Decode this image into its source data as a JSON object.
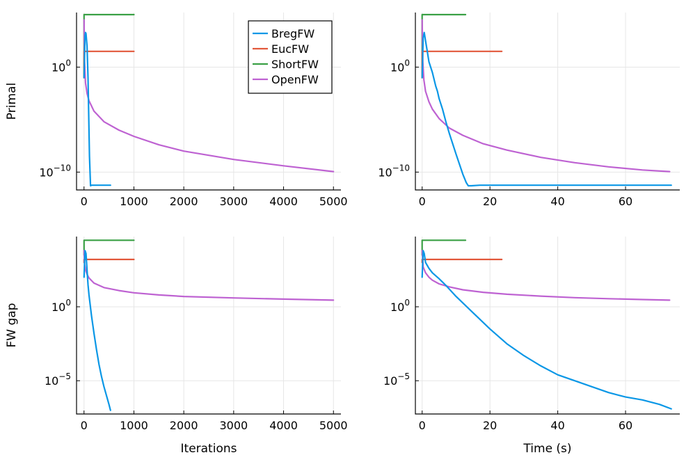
{
  "chart_data": {
    "type": "line",
    "legend": {
      "placement": "top-right of top-left panel",
      "entries": [
        "BregFW",
        "EucFW",
        "ShortFW",
        "OpenFW"
      ]
    },
    "colors": {
      "BregFW": "#0a97e6",
      "EucFW": "#e2583b",
      "ShortFW": "#3aa045",
      "OpenFW": "#be62d2"
    },
    "panels": [
      {
        "id": "primal-iterations",
        "ylabel": "Primal",
        "xlabel": "",
        "xscale": "linear",
        "yscale": "log10",
        "xlim": [
          -150,
          5150
        ],
        "ylim_log10": [
          -11.7,
          5.2
        ],
        "xticks": [
          0,
          1000,
          2000,
          3000,
          4000,
          5000
        ],
        "xtick_labels": [
          "0",
          "1000",
          "2000",
          "3000",
          "4000",
          "5000"
        ],
        "yticks_log10": [
          0,
          -10
        ],
        "ytick_labels": [
          "10",
          "10"
        ],
        "ytick_exponents": [
          "0",
          "−10"
        ],
        "series": [
          {
            "name": "ShortFW",
            "x": [
              0,
              0,
              1000
            ],
            "y_log10": [
              -1,
              5,
              5
            ]
          },
          {
            "name": "EucFW",
            "x": [
              0,
              0,
              1000
            ],
            "y_log10": [
              -1,
              1.5,
              1.5
            ]
          },
          {
            "name": "OpenFW",
            "x": [
              0,
              10,
              30,
              60,
              100,
              200,
              400,
              700,
              1000,
              1500,
              2000,
              3000,
              4000,
              5000
            ],
            "y_log10": [
              4.5,
              0.5,
              -1.5,
              -2.5,
              -3.2,
              -4.2,
              -5.2,
              -6.0,
              -6.6,
              -7.4,
              -8.0,
              -8.8,
              -9.4,
              -9.95
            ]
          },
          {
            "name": "BregFW",
            "x": [
              0,
              20,
              30,
              40,
              60,
              80,
              110,
              130,
              150,
              300,
              530
            ],
            "y_log10": [
              -1,
              3.0,
              3.3,
              3.2,
              2.0,
              -1.0,
              -8.5,
              -11.3,
              -11.25,
              -11.25,
              -11.25
            ]
          }
        ]
      },
      {
        "id": "primal-time",
        "ylabel": "",
        "xlabel": "",
        "xscale": "linear",
        "yscale": "log10",
        "xlim": [
          -2,
          76
        ],
        "ylim_log10": [
          -11.7,
          5.2
        ],
        "xticks": [
          0,
          20,
          40,
          60
        ],
        "xtick_labels": [
          "0",
          "20",
          "40",
          "60"
        ],
        "yticks_log10": [
          0,
          -10
        ],
        "ytick_labels": [
          "10",
          "10"
        ],
        "ytick_exponents": [
          "0",
          "−10"
        ],
        "series": [
          {
            "name": "ShortFW",
            "x": [
              0,
              0,
              12.8
            ],
            "y_log10": [
              -1,
              5,
              5
            ]
          },
          {
            "name": "EucFW",
            "x": [
              0,
              0,
              23.5
            ],
            "y_log10": [
              -1,
              1.5,
              1.5
            ]
          },
          {
            "name": "OpenFW",
            "x": [
              0,
              0.2,
              0.5,
              1,
              2,
              3,
              5,
              8,
              12,
              18,
              25,
              35,
              45,
              55,
              65,
              73
            ],
            "y_log10": [
              4.5,
              0.5,
              -1.2,
              -2.3,
              -3.3,
              -4.0,
              -4.9,
              -5.8,
              -6.5,
              -7.3,
              -7.9,
              -8.6,
              -9.1,
              -9.5,
              -9.8,
              -9.95
            ]
          },
          {
            "name": "BregFW",
            "x": [
              0,
              0.3,
              0.6,
              1,
              1.5,
              2,
              3,
              4,
              4.5,
              5,
              6,
              7,
              8,
              10,
              12,
              13,
              13.6,
              14.5,
              17,
              20,
              30,
              40,
              60,
              73.5
            ],
            "y_log10": [
              -1,
              2.8,
              3.3,
              2.5,
              1.5,
              0.5,
              -0.5,
              -1.8,
              -2.3,
              -3.0,
              -4.0,
              -5.2,
              -6.3,
              -8.3,
              -10.2,
              -11.0,
              -11.3,
              -11.3,
              -11.25,
              -11.25,
              -11.25,
              -11.25,
              -11.25,
              -11.25
            ]
          }
        ]
      },
      {
        "id": "gap-iterations",
        "ylabel": "FW gap",
        "xlabel": "Iterations",
        "xscale": "linear",
        "yscale": "log10",
        "xlim": [
          -150,
          5150
        ],
        "ylim_log10": [
          -7.25,
          4.75
        ],
        "xticks": [
          0,
          1000,
          2000,
          3000,
          4000,
          5000
        ],
        "xtick_labels": [
          "0",
          "1000",
          "2000",
          "3000",
          "4000",
          "5000"
        ],
        "yticks_log10": [
          0,
          -5
        ],
        "ytick_labels": [
          "10",
          "10"
        ],
        "ytick_exponents": [
          "0",
          "−5"
        ],
        "series": [
          {
            "name": "ShortFW",
            "x": [
              0,
              0,
              1000
            ],
            "y_log10": [
              3.5,
              4.5,
              4.5
            ]
          },
          {
            "name": "EucFW",
            "x": [
              0,
              0,
              1000
            ],
            "y_log10": [
              3.0,
              3.2,
              3.2
            ]
          },
          {
            "name": "OpenFW",
            "x": [
              0,
              10,
              30,
              60,
              100,
              200,
              400,
              700,
              1000,
              1500,
              2000,
              3000,
              4000,
              5000
            ],
            "y_log10": [
              3.8,
              2.9,
              2.5,
              2.2,
              1.95,
              1.6,
              1.3,
              1.1,
              0.95,
              0.8,
              0.7,
              0.6,
              0.52,
              0.45
            ]
          },
          {
            "name": "BregFW",
            "x": [
              0,
              20,
              40,
              60,
              80,
              100,
              150,
              200,
              250,
              300,
              350,
              400,
              450,
              500,
              530
            ],
            "y_log10": [
              2.0,
              3.8,
              3.6,
              2.5,
              1.5,
              0.8,
              -0.6,
              -1.8,
              -2.9,
              -3.9,
              -4.7,
              -5.4,
              -6.0,
              -6.6,
              -7.0
            ]
          }
        ]
      },
      {
        "id": "gap-time",
        "ylabel": "",
        "xlabel": "Time (s)",
        "xscale": "linear",
        "yscale": "log10",
        "xlim": [
          -2,
          76
        ],
        "ylim_log10": [
          -7.25,
          4.75
        ],
        "xticks": [
          0,
          20,
          40,
          60
        ],
        "xtick_labels": [
          "0",
          "20",
          "40",
          "60"
        ],
        "yticks_log10": [
          0,
          -5
        ],
        "ytick_labels": [
          "10",
          "10"
        ],
        "ytick_exponents": [
          "0",
          "−5"
        ],
        "series": [
          {
            "name": "ShortFW",
            "x": [
              0,
              0,
              12.8
            ],
            "y_log10": [
              3.5,
              4.5,
              4.5
            ]
          },
          {
            "name": "EucFW",
            "x": [
              0,
              0,
              23.5
            ],
            "y_log10": [
              3.0,
              3.2,
              3.2
            ]
          },
          {
            "name": "OpenFW",
            "x": [
              0,
              0.3,
              1,
              2,
              3,
              5,
              8,
              12,
              18,
              25,
              35,
              45,
              55,
              65,
              73
            ],
            "y_log10": [
              3.8,
              2.7,
              2.3,
              2.0,
              1.8,
              1.55,
              1.35,
              1.15,
              0.98,
              0.85,
              0.72,
              0.62,
              0.55,
              0.49,
              0.45
            ]
          },
          {
            "name": "BregFW",
            "x": [
              0,
              0.3,
              0.6,
              1,
              2,
              3,
              4,
              5,
              7,
              10,
              15,
              20,
              25,
              30,
              35,
              40,
              45,
              50,
              55,
              60,
              65,
              70,
              73.5
            ],
            "y_log10": [
              2.0,
              3.8,
              3.6,
              3.0,
              2.6,
              2.3,
              2.1,
              1.9,
              1.45,
              0.7,
              -0.4,
              -1.5,
              -2.5,
              -3.3,
              -4.0,
              -4.6,
              -5.0,
              -5.4,
              -5.8,
              -6.1,
              -6.3,
              -6.6,
              -6.9
            ]
          }
        ]
      }
    ]
  }
}
